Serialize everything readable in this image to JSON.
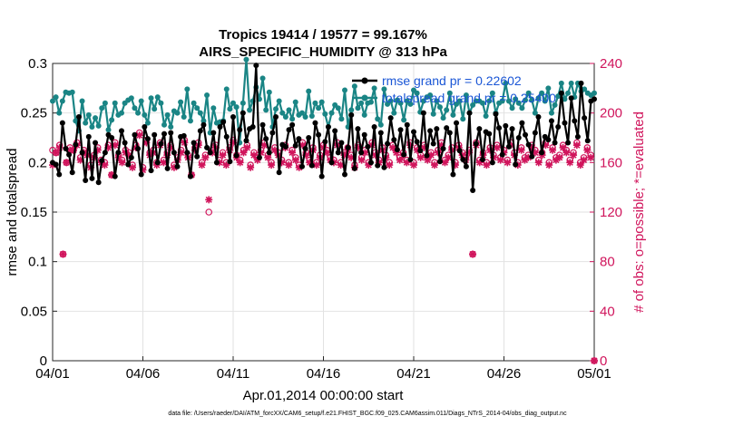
{
  "chart_data": {
    "type": "line",
    "title": "Tropics 19414 / 19577 = 99.167%",
    "subtitle": "AIRS_SPECIFIC_HUMIDITY @ 313 hPa",
    "xlabel": "Apr.01,2014 00:00:00 start",
    "ylabel_left": "rmse and totalspread",
    "ylabel_right": "# of obs: o=possible; *=evaluated",
    "x_tick_labels": [
      "04/01",
      "04/06",
      "04/11",
      "04/16",
      "04/21",
      "04/26",
      "05/01"
    ],
    "x_ticks": [
      0,
      5,
      10,
      15,
      20,
      25,
      30
    ],
    "xlim": [
      0,
      30
    ],
    "ylim_left": [
      0,
      0.3
    ],
    "y_ticks_left": [
      "0",
      "0.05",
      "0.1",
      "0.15",
      "0.2",
      "0.25",
      "0.3"
    ],
    "ylim_right": [
      0,
      240
    ],
    "y_ticks_right": [
      "0",
      "40",
      "80",
      "120",
      "160",
      "200",
      "240"
    ],
    "grid": true,
    "legend_position": "top-right",
    "series": [
      {
        "name": "rmse",
        "legend_label": "rmse grand pr = 0.22602",
        "axis": "left",
        "color": "#000000",
        "values": [
          0.2,
          0.198,
          0.188,
          0.24,
          0.214,
          0.208,
          0.19,
          0.218,
          0.246,
          0.21,
          0.182,
          0.226,
          0.184,
          0.22,
          0.18,
          0.202,
          0.21,
          0.228,
          0.225,
          0.186,
          0.21,
          0.232,
          0.22,
          0.198,
          0.205,
          0.228,
          0.214,
          0.188,
          0.236,
          0.224,
          0.192,
          0.228,
          0.2,
          0.219,
          0.229,
          0.194,
          0.23,
          0.21,
          0.196,
          0.226,
          0.227,
          0.21,
          0.186,
          0.22,
          0.206,
          0.232,
          0.238,
          0.215,
          0.21,
          0.23,
          0.2,
          0.236,
          0.241,
          0.226,
          0.201,
          0.246,
          0.207,
          0.233,
          0.25,
          0.222,
          0.234,
          0.236,
          0.298,
          0.205,
          0.238,
          0.224,
          0.21,
          0.23,
          0.246,
          0.19,
          0.218,
          0.216,
          0.233,
          0.238,
          0.217,
          0.224,
          0.196,
          0.214,
          0.225,
          0.197,
          0.24,
          0.228,
          0.186,
          0.221,
          0.236,
          0.2,
          0.232,
          0.21,
          0.22,
          0.188,
          0.215,
          0.248,
          0.194,
          0.234,
          0.21,
          0.228,
          0.216,
          0.2,
          0.236,
          0.197,
          0.23,
          0.195,
          0.219,
          0.245,
          0.223,
          0.213,
          0.233,
          0.208,
          0.238,
          0.203,
          0.231,
          0.221,
          0.212,
          0.25,
          0.207,
          0.232,
          0.219,
          0.234,
          0.201,
          0.214,
          0.235,
          0.23,
          0.188,
          0.24,
          0.212,
          0.203,
          0.196,
          0.25,
          0.172,
          0.219,
          0.234,
          0.203,
          0.231,
          0.229,
          0.2,
          0.249,
          0.235,
          0.208,
          0.237,
          0.216,
          0.234,
          0.198,
          0.225,
          0.24,
          0.228,
          0.218,
          0.206,
          0.23,
          0.246,
          0.21,
          0.226,
          0.223,
          0.242,
          0.22,
          0.236,
          0.27,
          0.24,
          0.22,
          0.265,
          0.242,
          0.226,
          0.28,
          0.245,
          0.222,
          0.262,
          0.264
        ]
      },
      {
        "name": "totalspread",
        "legend_label": "totalspread grand pr = 0.25400",
        "axis": "left",
        "color": "#1a8585",
        "values": [
          0.262,
          0.266,
          0.25,
          0.262,
          0.271,
          0.27,
          0.271,
          0.242,
          0.232,
          0.262,
          0.24,
          0.248,
          0.236,
          0.245,
          0.237,
          0.255,
          0.26,
          0.233,
          0.243,
          0.26,
          0.248,
          0.25,
          0.26,
          0.263,
          0.265,
          0.255,
          0.25,
          0.262,
          0.248,
          0.24,
          0.265,
          0.254,
          0.266,
          0.26,
          0.238,
          0.248,
          0.236,
          0.252,
          0.25,
          0.261,
          0.246,
          0.274,
          0.242,
          0.26,
          0.255,
          0.25,
          0.242,
          0.268,
          0.23,
          0.255,
          0.24,
          0.241,
          0.242,
          0.274,
          0.254,
          0.26,
          0.256,
          0.22,
          0.26,
          0.304,
          0.253,
          0.262,
          0.276,
          0.264,
          0.285,
          0.253,
          0.271,
          0.236,
          0.254,
          0.262,
          0.25,
          0.246,
          0.253,
          0.244,
          0.261,
          0.248,
          0.25,
          0.246,
          0.272,
          0.247,
          0.26,
          0.255,
          0.261,
          0.249,
          0.236,
          0.25,
          0.258,
          0.255,
          0.244,
          0.273,
          0.236,
          0.253,
          0.277,
          0.255,
          0.26,
          0.248,
          0.26,
          0.261,
          0.275,
          0.244,
          0.238,
          0.274,
          0.259,
          0.262,
          0.25,
          0.263,
          0.26,
          0.243,
          0.262,
          0.259,
          0.273,
          0.27,
          0.251,
          0.262,
          0.266,
          0.268,
          0.249,
          0.262,
          0.256,
          0.245,
          0.253,
          0.27,
          0.248,
          0.259,
          0.262,
          0.244,
          0.268,
          0.25,
          0.258,
          0.262,
          0.262,
          0.26,
          0.247,
          0.262,
          0.27,
          0.25,
          0.26,
          0.262,
          0.28,
          0.262,
          0.255,
          0.264,
          0.26,
          0.255,
          0.263,
          0.27,
          0.263,
          0.25,
          0.265,
          0.27,
          0.262,
          0.275,
          0.25,
          0.258,
          0.267,
          0.28,
          0.264,
          0.27,
          0.28,
          0.266,
          0.28,
          0.272,
          0.274,
          0.27,
          0.268,
          0.27
        ]
      },
      {
        "name": "obs_possible",
        "axis": "right",
        "marker": "o",
        "color": "#d0155c",
        "values": [
          170,
          168,
          174,
          86,
          160,
          172,
          170,
          176,
          164,
          170,
          168,
          158,
          166,
          172,
          162,
          160,
          174,
          150,
          176,
          166,
          162,
          170,
          168,
          158,
          174,
          184,
          156,
          178,
          168,
          170,
          160,
          176,
          162,
          168,
          174,
          158,
          164,
          170,
          178,
          166,
          150,
          172,
          176,
          160,
          166,
          120,
          170,
          174,
          162,
          168,
          160,
          172,
          178,
          166,
          162,
          170,
          174,
          158,
          168,
          164,
          170,
          176,
          166,
          160,
          172,
          168,
          162,
          174,
          160,
          170,
          164,
          158,
          176,
          168,
          162,
          172,
          160,
          166,
          174,
          170,
          164,
          162,
          176,
          160,
          168,
          172,
          166,
          158,
          174,
          164,
          170,
          160,
          176,
          168,
          162,
          172,
          166,
          160,
          174,
          170,
          164,
          168,
          162,
          176,
          160,
          172,
          166,
          174,
          164,
          168,
          160,
          170,
          176,
          162,
          166,
          172,
          160,
          174,
          168,
          164,
          170,
          86,
          176,
          162,
          168,
          160,
          172,
          166,
          174,
          164,
          170,
          162,
          176,
          168,
          160,
          172,
          164,
          166,
          174,
          170,
          162,
          168,
          176,
          160,
          172,
          164,
          166,
          174,
          170,
          162,
          168,
          176,
          160,
          164,
          172,
          166,
          0
        ]
      },
      {
        "name": "obs_evaluated",
        "axis": "right",
        "marker": "*",
        "color": "#d0155c",
        "values": [
          158,
          168,
          172,
          86,
          160,
          170,
          170,
          174,
          162,
          168,
          166,
          156,
          164,
          170,
          160,
          158,
          172,
          150,
          174,
          164,
          160,
          168,
          166,
          156,
          172,
          182,
          154,
          176,
          166,
          168,
          158,
          174,
          160,
          166,
          172,
          156,
          162,
          168,
          176,
          164,
          150,
          170,
          174,
          158,
          164,
          130,
          168,
          172,
          160,
          166,
          158,
          170,
          176,
          164,
          160,
          168,
          172,
          156,
          166,
          162,
          168,
          174,
          164,
          158,
          170,
          166,
          160,
          172,
          158,
          168,
          162,
          156,
          174,
          166,
          160,
          170,
          158,
          164,
          172,
          168,
          162,
          160,
          174,
          158,
          166,
          170,
          164,
          156,
          172,
          162,
          168,
          158,
          174,
          166,
          160,
          170,
          164,
          158,
          172,
          168,
          162,
          166,
          160,
          174,
          158,
          170,
          164,
          172,
          162,
          166,
          158,
          168,
          174,
          160,
          164,
          170,
          158,
          172,
          166,
          162,
          168,
          86,
          174,
          160,
          166,
          158,
          170,
          164,
          172,
          162,
          168,
          160,
          174,
          166,
          158,
          170,
          162,
          164,
          172,
          168,
          160,
          166,
          174,
          158,
          170,
          162,
          164,
          172,
          168,
          160,
          166,
          174,
          158,
          162,
          170,
          164,
          0
        ]
      }
    ]
  },
  "footer": {
    "data_file": "data file: /Users/raeder/DAI/ATM_forcXX/CAM6_setup/f.e21.FHIST_BGC.f09_025.CAM6assim.011/Diags_NTrS_2014-04/obs_diag_output.nc"
  }
}
